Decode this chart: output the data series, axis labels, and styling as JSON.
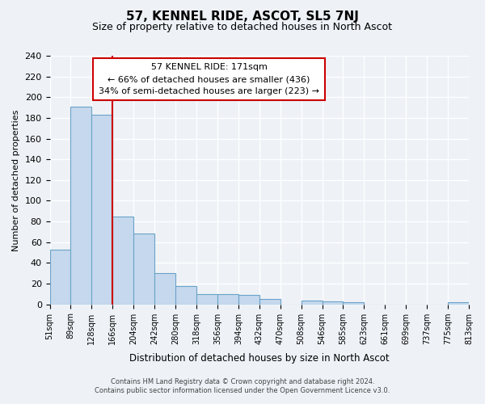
{
  "title": "57, KENNEL RIDE, ASCOT, SL5 7NJ",
  "subtitle": "Size of property relative to detached houses in North Ascot",
  "xlabel": "Distribution of detached houses by size in North Ascot",
  "ylabel": "Number of detached properties",
  "bin_labels": [
    "51sqm",
    "89sqm",
    "128sqm",
    "166sqm",
    "204sqm",
    "242sqm",
    "280sqm",
    "318sqm",
    "356sqm",
    "394sqm",
    "432sqm",
    "470sqm",
    "508sqm",
    "546sqm",
    "585sqm",
    "623sqm",
    "661sqm",
    "699sqm",
    "737sqm",
    "775sqm",
    "813sqm"
  ],
  "bar_values": [
    53,
    191,
    183,
    85,
    68,
    30,
    18,
    10,
    10,
    9,
    5,
    0,
    4,
    3,
    2,
    0,
    0,
    0,
    0,
    2
  ],
  "bar_color": "#c5d8ed",
  "bar_edge_color": "#6aa3c8",
  "vline_x": 3,
  "vline_color": "#cc0000",
  "annotation_title": "57 KENNEL RIDE: 171sqm",
  "annotation_line1": "← 66% of detached houses are smaller (436)",
  "annotation_line2": "34% of semi-detached houses are larger (223) →",
  "annotation_box_color": "#ffffff",
  "annotation_box_edge": "#cc0000",
  "ylim": [
    0,
    240
  ],
  "yticks": [
    0,
    20,
    40,
    60,
    80,
    100,
    120,
    140,
    160,
    180,
    200,
    220,
    240
  ],
  "footnote1": "Contains HM Land Registry data © Crown copyright and database right 2024.",
  "footnote2": "Contains public sector information licensed under the Open Government Licence v3.0.",
  "bg_color": "#eef2f7",
  "plot_bg_color": "#eef2f7"
}
